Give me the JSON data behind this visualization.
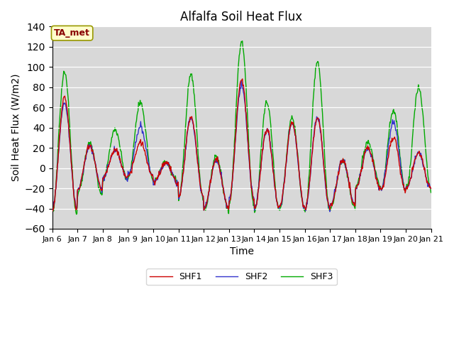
{
  "title": "Alfalfa Soil Heat Flux",
  "xlabel": "Time",
  "ylabel": "Soil Heat Flux (W/m2)",
  "ylim": [
    -60,
    140
  ],
  "yticks": [
    -60,
    -40,
    -20,
    0,
    20,
    40,
    60,
    80,
    100,
    120,
    140
  ],
  "x_labels": [
    "Jan 6",
    "Jan 7",
    "Jan 8",
    "Jan 9",
    "Jan 10",
    "Jan 11",
    "Jan 12",
    "Jan 13",
    "Jan 14",
    "Jan 15",
    "Jan 16",
    "Jan 17",
    "Jan 18",
    "Jan 19",
    "Jan 20",
    "Jan 21"
  ],
  "legend_labels": [
    "SHF1",
    "SHF2",
    "SHF3"
  ],
  "colors": [
    "#cc0000",
    "#3333cc",
    "#00aa00"
  ],
  "bg_color": "#d8d8d8",
  "annotation_text": "TA_met",
  "annotation_bg": "#ffffcc",
  "annotation_fg": "#880000",
  "linewidth": 1.0
}
